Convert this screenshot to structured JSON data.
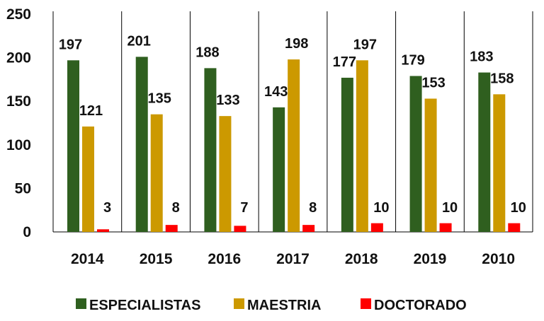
{
  "chart_data": {
    "type": "bar",
    "categories": [
      "2014",
      "2015",
      "2016",
      "2017",
      "2018",
      "2019",
      "2010"
    ],
    "series": [
      {
        "name": "ESPECIALISTAS",
        "values": [
          197,
          201,
          188,
          143,
          177,
          179,
          183
        ],
        "color": "#2f5f1f"
      },
      {
        "name": "MAESTRIA",
        "values": [
          121,
          135,
          133,
          198,
          197,
          153,
          158
        ],
        "color": "#cc9900"
      },
      {
        "name": "DOCTORADO",
        "values": [
          3,
          8,
          7,
          8,
          10,
          10,
          10
        ],
        "color": "#ff0000"
      }
    ],
    "title": "",
    "xlabel": "",
    "ylabel": "",
    "ylim": [
      0,
      250
    ],
    "yticks": [
      "0",
      "50",
      "100",
      "150",
      "200",
      "250"
    ],
    "grid": false,
    "legend_position": "bottom",
    "data_labels": true
  }
}
